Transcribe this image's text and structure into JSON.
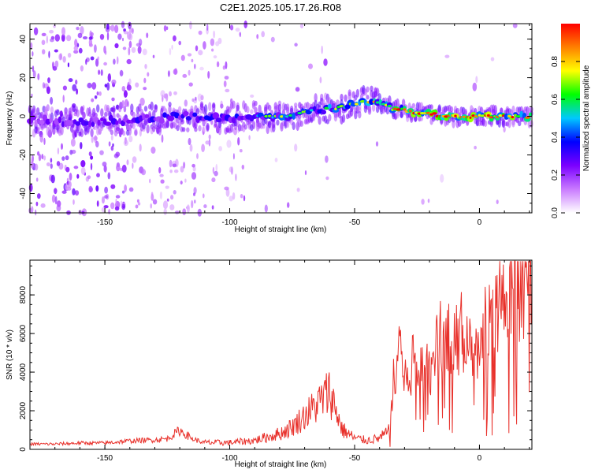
{
  "figure": {
    "title": "C2E1.2025.105.17.26.R08"
  },
  "chart_data": [
    {
      "type": "heatmap",
      "title": "C2E1.2025.105.17.26.R08",
      "xlabel": "Height of straight line (km)",
      "ylabel": "Frequency (Hz)",
      "xlim": [
        -180,
        21
      ],
      "ylim": [
        -50,
        48
      ],
      "xticks": [
        -150,
        -100,
        -50,
        0
      ],
      "yticks": [
        -40,
        -20,
        0,
        20,
        40
      ],
      "colorbar": {
        "label": "Normalized spectral amplitude",
        "range": [
          0,
          1
        ],
        "ticks": [
          0,
          0.2,
          0.4,
          0.6,
          0.8
        ],
        "tick_labels": [
          "0.0",
          "0.2",
          "0.4",
          "0.6",
          "0.8"
        ],
        "colormap": [
          "#ffffff",
          "#c97aff",
          "#7b00ff",
          "#0000ff",
          "#00c8ff",
          "#00ff00",
          "#ffff00",
          "#ff8000",
          "#ff0000"
        ]
      },
      "ridge": {
        "x": [
          -180,
          -160,
          -140,
          -120,
          -100,
          -90,
          -80,
          -70,
          -60,
          -50,
          -45,
          -40,
          -35,
          -30,
          -20,
          -10,
          0,
          10,
          21
        ],
        "freq": [
          -2,
          -3,
          -2,
          0,
          -1,
          0,
          0,
          2,
          4,
          6,
          8,
          7,
          4,
          3,
          1,
          0,
          0,
          0,
          0
        ],
        "amplitude": [
          0.3,
          0.4,
          0.4,
          0.45,
          0.5,
          0.5,
          0.55,
          0.55,
          0.6,
          0.55,
          0.65,
          0.7,
          0.75,
          0.85,
          0.95,
          0.95,
          1.0,
          0.9,
          0.7
        ]
      }
    },
    {
      "type": "line",
      "xlabel": "Height of straight line (km)",
      "ylabel": "SNR (10 * v/v)",
      "xlim": [
        -180,
        21
      ],
      "ylim": [
        0,
        9800
      ],
      "xticks": [
        -150,
        -100,
        -50,
        0
      ],
      "yticks": [
        0,
        2000,
        4000,
        6000,
        8000
      ],
      "series": [
        {
          "color": "#e8302a",
          "x": [
            -180,
            -170,
            -160,
            -150,
            -140,
            -130,
            -125,
            -120,
            -115,
            -110,
            -100,
            -90,
            -80,
            -75,
            -70,
            -65,
            -60,
            -57,
            -55,
            -50,
            -45,
            -40,
            -36,
            -34,
            -32,
            -30,
            -25,
            -20,
            -15,
            -10,
            -5,
            0,
            5,
            10,
            15,
            21
          ],
          "y": [
            250,
            250,
            300,
            300,
            400,
            450,
            500,
            900,
            500,
            300,
            300,
            400,
            700,
            1000,
            1500,
            2000,
            2600,
            1600,
            900,
            500,
            400,
            500,
            800,
            3500,
            5500,
            3000,
            4500,
            3500,
            5500,
            4500,
            5500,
            4000,
            6500,
            6000,
            7500,
            8000
          ]
        }
      ]
    }
  ]
}
